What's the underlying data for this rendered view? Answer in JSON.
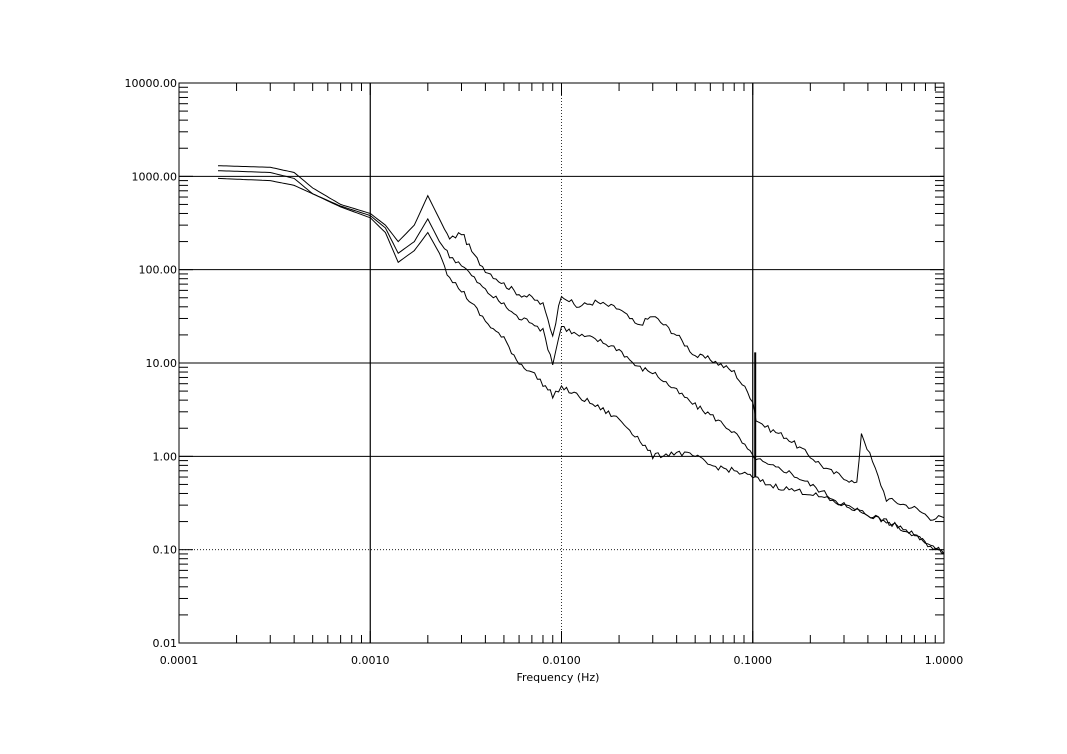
{
  "chart_data": {
    "type": "line",
    "title": "",
    "xlabel": "Frequency (Hz)",
    "ylabel": "",
    "xscale": "log",
    "yscale": "log",
    "xlim": [
      0.0001,
      1.0
    ],
    "ylim": [
      0.01,
      10000
    ],
    "grid": "major, solid at some decades and dotted at others",
    "x_tick_labels": [
      "0.0001",
      "0.0010",
      "0.0100",
      "0.1000",
      "1.0000"
    ],
    "y_tick_labels": [
      "0.01",
      "0.10",
      "1.00",
      "10.00",
      "100.00",
      "1000.00",
      "10000.00"
    ],
    "colors": {
      "line": "#000000",
      "grid": "#000000",
      "background": "#ffffff"
    },
    "series": [
      {
        "x": [
          0.00016,
          0.0003,
          0.0004,
          0.0005,
          0.0007,
          0.001,
          0.0012,
          0.0014,
          0.0017,
          0.002,
          0.0023,
          0.0026,
          0.003,
          0.0035,
          0.004,
          0.005,
          0.006,
          0.007,
          0.008,
          0.009,
          0.01,
          0.012,
          0.015,
          0.02,
          0.025,
          0.03,
          0.04,
          0.05,
          0.06,
          0.08,
          0.1,
          0.104,
          0.12,
          0.15,
          0.2,
          0.25,
          0.3,
          0.35,
          0.37,
          0.5,
          0.7,
          0.85,
          1.0
        ],
        "y": [
          1300,
          1250,
          1100,
          750,
          500,
          400,
          300,
          200,
          300,
          620,
          350,
          210,
          250,
          140,
          100,
          70,
          55,
          50,
          42,
          20,
          55,
          40,
          45,
          38,
          25,
          32,
          20,
          12,
          11,
          8,
          4,
          2.5,
          2.0,
          1.6,
          1.0,
          0.7,
          0.6,
          0.5,
          1.8,
          0.35,
          0.28,
          0.22,
          0.22
        ]
      },
      {
        "x": [
          0.00016,
          0.0003,
          0.0004,
          0.0005,
          0.0007,
          0.001,
          0.0012,
          0.0014,
          0.0017,
          0.002,
          0.0023,
          0.0026,
          0.003,
          0.0035,
          0.004,
          0.005,
          0.006,
          0.007,
          0.008,
          0.009,
          0.01,
          0.012,
          0.015,
          0.02,
          0.025,
          0.03,
          0.04,
          0.05,
          0.06,
          0.08,
          0.1,
          0.12,
          0.15,
          0.2,
          0.3,
          0.5,
          0.7,
          1.0
        ],
        "y": [
          1150,
          1100,
          950,
          650,
          480,
          380,
          280,
          150,
          200,
          350,
          200,
          140,
          115,
          80,
          60,
          42,
          30,
          28,
          22,
          10,
          25,
          20,
          18,
          14,
          9,
          8,
          5,
          3.5,
          2.8,
          1.8,
          1.0,
          0.8,
          0.7,
          0.5,
          0.3,
          0.2,
          0.15,
          0.09
        ]
      },
      {
        "x": [
          0.00016,
          0.0003,
          0.0004,
          0.0005,
          0.0007,
          0.001,
          0.0012,
          0.0014,
          0.0017,
          0.002,
          0.0023,
          0.0026,
          0.003,
          0.0035,
          0.004,
          0.005,
          0.006,
          0.007,
          0.008,
          0.009,
          0.01,
          0.012,
          0.015,
          0.02,
          0.025,
          0.03,
          0.04,
          0.05,
          0.06,
          0.08,
          0.1,
          0.12,
          0.15,
          0.2,
          0.3,
          0.5,
          0.7,
          1.0
        ],
        "y": [
          950,
          900,
          800,
          650,
          470,
          360,
          250,
          120,
          160,
          250,
          150,
          80,
          60,
          40,
          28,
          18,
          10,
          8,
          6,
          4.5,
          5.5,
          4.5,
          3.5,
          2.5,
          1.6,
          1.0,
          1.1,
          1.0,
          0.8,
          0.7,
          0.6,
          0.5,
          0.45,
          0.4,
          0.3,
          0.2,
          0.14,
          0.09
        ]
      }
    ]
  }
}
